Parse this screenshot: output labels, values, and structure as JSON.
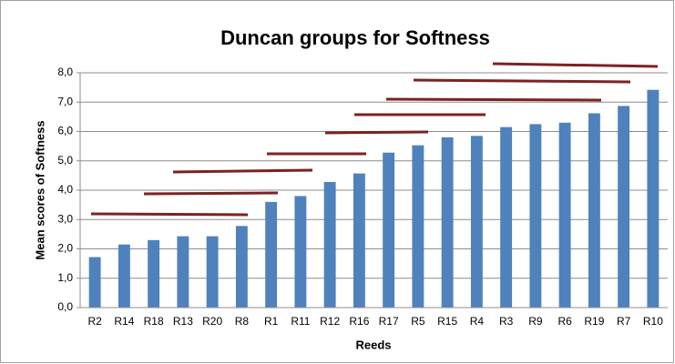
{
  "chart_data": {
    "type": "bar",
    "title": "Duncan groups for Softness",
    "x_label": "Reeds",
    "y_label": "Mean scores of Softness",
    "categories": [
      "R2",
      "R14",
      "R18",
      "R13",
      "R20",
      "R8",
      "R1",
      "R11",
      "R12",
      "R16",
      "R17",
      "R5",
      "R15",
      "R4",
      "R3",
      "R9",
      "R6",
      "R19",
      "R7",
      "R10"
    ],
    "values": [
      1.72,
      2.15,
      2.3,
      2.43,
      2.43,
      2.78,
      3.6,
      3.8,
      4.28,
      4.57,
      5.28,
      5.53,
      5.8,
      5.85,
      6.15,
      6.25,
      6.3,
      6.62,
      6.87,
      7.42
    ],
    "color": "#4f81bd",
    "ylim": [
      0,
      8
    ],
    "yticks": [
      {
        "value": 0,
        "label": "0,0"
      },
      {
        "value": 1,
        "label": "1,0"
      },
      {
        "value": 2,
        "label": "2,0"
      },
      {
        "value": 3,
        "label": "3,0"
      },
      {
        "value": 4,
        "label": "4,0"
      },
      {
        "value": 5,
        "label": "5,0"
      },
      {
        "value": 6,
        "label": "6,0"
      },
      {
        "value": 7,
        "label": "7,0"
      },
      {
        "value": 8,
        "label": "8,0"
      }
    ],
    "grid": true
  }
}
